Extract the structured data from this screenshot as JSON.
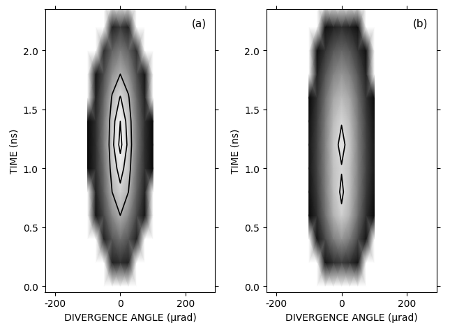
{
  "chart_data": [
    {
      "type": "heatmap",
      "title": "(a)",
      "x_label": "DIVERGENCE ANGLE (μrad)",
      "y_label": "TIME (ns)",
      "xlim": [
        -230,
        290
      ],
      "ylim": [
        -0.05,
        2.35
      ],
      "xticks": [
        -200,
        0,
        200
      ],
      "yticks": [
        {
          "value": 0.0,
          "label": "0.0"
        },
        {
          "value": 0.5,
          "label": "0.5"
        },
        {
          "value": 1.0,
          "label": "1.0"
        },
        {
          "value": 1.5,
          "label": "1.5"
        },
        {
          "value": 2.0,
          "label": "2.0"
        }
      ],
      "x": [
        -100,
        -75,
        -50,
        -25,
        0,
        25,
        50,
        75,
        100
      ],
      "y": [
        0.0,
        0.2,
        0.4,
        0.6,
        0.8,
        1.0,
        1.2,
        1.4,
        1.6,
        1.8,
        2.0,
        2.2,
        2.4
      ],
      "cells": [
        [
          0,
          0,
          0,
          0,
          0,
          0,
          0,
          0,
          0
        ],
        [
          0,
          0,
          0,
          0.15,
          0.2,
          0.15,
          0,
          0,
          0
        ],
        [
          0,
          0,
          0.15,
          0.35,
          0.45,
          0.35,
          0.15,
          0,
          0
        ],
        [
          0,
          0.1,
          0.3,
          0.55,
          0.7,
          0.55,
          0.3,
          0.1,
          0
        ],
        [
          0,
          0.15,
          0.4,
          0.7,
          0.82,
          0.7,
          0.4,
          0.15,
          0
        ],
        [
          0.05,
          0.2,
          0.45,
          0.78,
          0.9,
          0.78,
          0.45,
          0.2,
          0.05
        ],
        [
          0.05,
          0.2,
          0.5,
          0.82,
          0.98,
          0.82,
          0.5,
          0.2,
          0.05
        ],
        [
          0.05,
          0.2,
          0.48,
          0.8,
          0.95,
          0.8,
          0.48,
          0.2,
          0.05
        ],
        [
          0,
          0.15,
          0.42,
          0.72,
          0.86,
          0.72,
          0.42,
          0.15,
          0
        ],
        [
          0,
          0.1,
          0.32,
          0.58,
          0.7,
          0.58,
          0.32,
          0.1,
          0
        ],
        [
          0,
          0,
          0.2,
          0.4,
          0.5,
          0.4,
          0.2,
          0,
          0
        ],
        [
          0,
          0,
          0,
          0.15,
          0.25,
          0.15,
          0,
          0,
          0
        ],
        [
          0,
          0,
          0,
          0,
          0,
          0,
          0,
          0,
          0
        ]
      ],
      "contour_levels": [
        0.7,
        0.85,
        0.95
      ]
    },
    {
      "type": "heatmap",
      "title": "(b)",
      "x_label": "DIVERGENCE ANGLE (μrad)",
      "y_label": "TIME (ns)",
      "xlim": [
        -230,
        290
      ],
      "ylim": [
        -0.05,
        2.35
      ],
      "xticks": [
        -200,
        0,
        200
      ],
      "yticks": [
        {
          "value": 0.0,
          "label": "0.0"
        },
        {
          "value": 0.5,
          "label": "0.5"
        },
        {
          "value": 1.0,
          "label": "1.0"
        },
        {
          "value": 1.5,
          "label": "1.5"
        },
        {
          "value": 2.0,
          "label": "2.0"
        }
      ],
      "x": [
        -100,
        -75,
        -50,
        -25,
        0,
        25,
        50,
        75,
        100
      ],
      "y": [
        0.0,
        0.2,
        0.4,
        0.6,
        0.8,
        1.0,
        1.2,
        1.4,
        1.6,
        1.8,
        2.0,
        2.2,
        2.4
      ],
      "cells": [
        [
          0,
          0,
          0,
          0,
          0,
          0,
          0,
          0,
          0
        ],
        [
          0,
          0,
          0.1,
          0.2,
          0.25,
          0.2,
          0.1,
          0,
          0
        ],
        [
          0,
          0.1,
          0.3,
          0.5,
          0.6,
          0.5,
          0.3,
          0.1,
          0
        ],
        [
          0.05,
          0.2,
          0.45,
          0.7,
          0.82,
          0.7,
          0.45,
          0.2,
          0.05
        ],
        [
          0.08,
          0.25,
          0.5,
          0.75,
          0.88,
          0.75,
          0.5,
          0.25,
          0.08
        ],
        [
          0.1,
          0.28,
          0.52,
          0.76,
          0.84,
          0.76,
          0.52,
          0.28,
          0.1
        ],
        [
          0.1,
          0.28,
          0.52,
          0.78,
          0.9,
          0.78,
          0.52,
          0.28,
          0.1
        ],
        [
          0.08,
          0.26,
          0.5,
          0.74,
          0.84,
          0.74,
          0.5,
          0.26,
          0.08
        ],
        [
          0.05,
          0.22,
          0.45,
          0.66,
          0.74,
          0.66,
          0.45,
          0.22,
          0.05
        ],
        [
          0,
          0.15,
          0.35,
          0.52,
          0.6,
          0.52,
          0.35,
          0.15,
          0
        ],
        [
          0,
          0.08,
          0.22,
          0.36,
          0.42,
          0.36,
          0.22,
          0.08,
          0
        ],
        [
          0,
          0,
          0.08,
          0.15,
          0.2,
          0.15,
          0.08,
          0,
          0
        ],
        [
          0,
          0,
          0,
          0,
          0,
          0,
          0,
          0,
          0
        ]
      ],
      "contour_levels": [
        0.85
      ]
    }
  ]
}
